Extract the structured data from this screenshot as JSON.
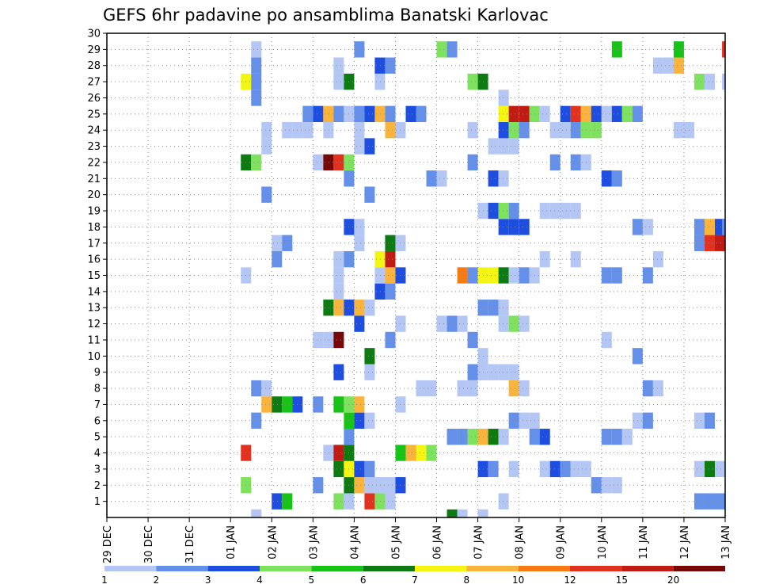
{
  "chart_data": {
    "type": "heatmap",
    "title": "GEFS 6hr padavine po ansamblima Banatski Karlovac",
    "xlabel": "",
    "ylabel": "",
    "x_tick_labels": [
      "29 DEC",
      "30 DEC",
      "31 DEC",
      "01 JAN",
      "02 JAN",
      "03 JAN",
      "04 JAN",
      "05 JAN",
      "06 JAN",
      "07 JAN",
      "08 JAN",
      "09 JAN",
      "10 JAN",
      "11 JAN",
      "12 JAN",
      "13 JAN"
    ],
    "x_unit": "6-hour step (0 = 29 DEC 00Z)",
    "xlim": [
      0,
      60
    ],
    "y_tick_labels": [
      "1",
      "2",
      "3",
      "4",
      "5",
      "6",
      "7",
      "8",
      "9",
      "10",
      "11",
      "12",
      "13",
      "14",
      "15",
      "16",
      "17",
      "18",
      "19",
      "20",
      "21",
      "22",
      "23",
      "24",
      "25",
      "26",
      "27",
      "28",
      "29",
      "30"
    ],
    "ylim": [
      0,
      30
    ],
    "grid": true,
    "colorbar": {
      "labels": [
        "1",
        "2",
        "3",
        "4",
        "5",
        "6",
        "7",
        "8",
        "10",
        "12",
        "15",
        "20"
      ],
      "colors": [
        "#b3c6f4",
        "#6490ea",
        "#1d4ee0",
        "#7fe25f",
        "#18c318",
        "#0d7a12",
        "#f5f514",
        "#f8b43c",
        "#f57c14",
        "#e0321e",
        "#c01c14",
        "#760808"
      ]
    },
    "cells": [
      {
        "x": 14.5,
        "y": 0,
        "v": 1
      },
      {
        "x": 33.5,
        "y": 0,
        "v": 6
      },
      {
        "x": 34.5,
        "y": 0,
        "v": 1
      },
      {
        "x": 36.5,
        "y": 0,
        "v": 1
      },
      {
        "x": 16.5,
        "y": 1,
        "v": 3
      },
      {
        "x": 17.5,
        "y": 1,
        "v": 5
      },
      {
        "x": 22.5,
        "y": 1,
        "v": 4
      },
      {
        "x": 23.5,
        "y": 1,
        "v": 1
      },
      {
        "x": 25.5,
        "y": 1,
        "v": 12
      },
      {
        "x": 26.5,
        "y": 1,
        "v": 4
      },
      {
        "x": 27.5,
        "y": 1,
        "v": 1
      },
      {
        "x": 38.5,
        "y": 1,
        "v": 1
      },
      {
        "x": 57.5,
        "y": 1,
        "v": 2
      },
      {
        "x": 58.5,
        "y": 1,
        "v": 2
      },
      {
        "x": 59.5,
        "y": 1,
        "v": 2
      },
      {
        "x": 13.5,
        "y": 2,
        "v": 4
      },
      {
        "x": 20.5,
        "y": 2,
        "v": 2
      },
      {
        "x": 23.5,
        "y": 2,
        "v": 6
      },
      {
        "x": 24.5,
        "y": 2,
        "v": 8
      },
      {
        "x": 25.5,
        "y": 2,
        "v": 1
      },
      {
        "x": 26.5,
        "y": 2,
        "v": 1
      },
      {
        "x": 27.5,
        "y": 2,
        "v": 1
      },
      {
        "x": 28.5,
        "y": 2,
        "v": 3
      },
      {
        "x": 47.5,
        "y": 2,
        "v": 2
      },
      {
        "x": 48.5,
        "y": 2,
        "v": 1
      },
      {
        "x": 49.5,
        "y": 2,
        "v": 1
      },
      {
        "x": 22.5,
        "y": 3,
        "v": 6
      },
      {
        "x": 23.5,
        "y": 3,
        "v": 7
      },
      {
        "x": 24.5,
        "y": 3,
        "v": 3
      },
      {
        "x": 25.5,
        "y": 3,
        "v": 2
      },
      {
        "x": 36.5,
        "y": 3,
        "v": 3
      },
      {
        "x": 37.5,
        "y": 3,
        "v": 2
      },
      {
        "x": 39.5,
        "y": 3,
        "v": 1
      },
      {
        "x": 42.5,
        "y": 3,
        "v": 1
      },
      {
        "x": 43.5,
        "y": 3,
        "v": 3
      },
      {
        "x": 44.5,
        "y": 3,
        "v": 2
      },
      {
        "x": 45.5,
        "y": 3,
        "v": 1
      },
      {
        "x": 46.5,
        "y": 3,
        "v": 1
      },
      {
        "x": 57.5,
        "y": 3,
        "v": 1
      },
      {
        "x": 58.5,
        "y": 3,
        "v": 6
      },
      {
        "x": 59.5,
        "y": 3,
        "v": 1
      },
      {
        "x": 13.5,
        "y": 4,
        "v": 12
      },
      {
        "x": 21.5,
        "y": 4,
        "v": 1
      },
      {
        "x": 22.5,
        "y": 4,
        "v": 15
      },
      {
        "x": 23.5,
        "y": 4,
        "v": 6
      },
      {
        "x": 28.5,
        "y": 4,
        "v": 5
      },
      {
        "x": 29.5,
        "y": 4,
        "v": 8
      },
      {
        "x": 30.5,
        "y": 4,
        "v": 7
      },
      {
        "x": 31.5,
        "y": 4,
        "v": 4
      },
      {
        "x": 23.5,
        "y": 5,
        "v": 2
      },
      {
        "x": 33.5,
        "y": 5,
        "v": 2
      },
      {
        "x": 34.5,
        "y": 5,
        "v": 2
      },
      {
        "x": 35.5,
        "y": 5,
        "v": 4
      },
      {
        "x": 36.5,
        "y": 5,
        "v": 8
      },
      {
        "x": 37.5,
        "y": 5,
        "v": 6
      },
      {
        "x": 38.5,
        "y": 5,
        "v": 1
      },
      {
        "x": 41.5,
        "y": 5,
        "v": 2
      },
      {
        "x": 42.5,
        "y": 5,
        "v": 3
      },
      {
        "x": 48.5,
        "y": 5,
        "v": 2
      },
      {
        "x": 49.5,
        "y": 5,
        "v": 2
      },
      {
        "x": 50.5,
        "y": 5,
        "v": 1
      },
      {
        "x": 14.5,
        "y": 6,
        "v": 2
      },
      {
        "x": 23.5,
        "y": 6,
        "v": 5
      },
      {
        "x": 24.5,
        "y": 6,
        "v": 3
      },
      {
        "x": 25.5,
        "y": 6,
        "v": 1
      },
      {
        "x": 39.5,
        "y": 6,
        "v": 2
      },
      {
        "x": 40.5,
        "y": 6,
        "v": 1
      },
      {
        "x": 41.5,
        "y": 6,
        "v": 1
      },
      {
        "x": 51.5,
        "y": 6,
        "v": 1
      },
      {
        "x": 52.5,
        "y": 6,
        "v": 2
      },
      {
        "x": 57.5,
        "y": 6,
        "v": 1
      },
      {
        "x": 58.5,
        "y": 6,
        "v": 2
      },
      {
        "x": 15.5,
        "y": 7,
        "v": 8
      },
      {
        "x": 16.5,
        "y": 7,
        "v": 6
      },
      {
        "x": 17.5,
        "y": 7,
        "v": 5
      },
      {
        "x": 18.5,
        "y": 7,
        "v": 3
      },
      {
        "x": 20.5,
        "y": 7,
        "v": 2
      },
      {
        "x": 22.5,
        "y": 7,
        "v": 5
      },
      {
        "x": 23.5,
        "y": 7,
        "v": 4
      },
      {
        "x": 24.5,
        "y": 7,
        "v": 8
      },
      {
        "x": 28.5,
        "y": 7,
        "v": 1
      },
      {
        "x": 14.5,
        "y": 8,
        "v": 2
      },
      {
        "x": 15.5,
        "y": 8,
        "v": 1
      },
      {
        "x": 30.5,
        "y": 8,
        "v": 1
      },
      {
        "x": 31.5,
        "y": 8,
        "v": 1
      },
      {
        "x": 34.5,
        "y": 8,
        "v": 1
      },
      {
        "x": 35.5,
        "y": 8,
        "v": 1
      },
      {
        "x": 39.5,
        "y": 8,
        "v": 8
      },
      {
        "x": 40.5,
        "y": 8,
        "v": 1
      },
      {
        "x": 52.5,
        "y": 8,
        "v": 2
      },
      {
        "x": 53.5,
        "y": 8,
        "v": 1
      },
      {
        "x": 22.5,
        "y": 9,
        "v": 3
      },
      {
        "x": 25.5,
        "y": 9,
        "v": 1
      },
      {
        "x": 35.5,
        "y": 9,
        "v": 2
      },
      {
        "x": 36.5,
        "y": 9,
        "v": 1
      },
      {
        "x": 37.5,
        "y": 9,
        "v": 1
      },
      {
        "x": 38.5,
        "y": 9,
        "v": 1
      },
      {
        "x": 39.5,
        "y": 9,
        "v": 1
      },
      {
        "x": 25.5,
        "y": 10,
        "v": 6
      },
      {
        "x": 36.5,
        "y": 10,
        "v": 1
      },
      {
        "x": 51.5,
        "y": 10,
        "v": 2
      },
      {
        "x": 20.5,
        "y": 11,
        "v": 1
      },
      {
        "x": 21.5,
        "y": 11,
        "v": 1
      },
      {
        "x": 22.5,
        "y": 11,
        "v": 20
      },
      {
        "x": 27.5,
        "y": 11,
        "v": 2
      },
      {
        "x": 35.5,
        "y": 11,
        "v": 2
      },
      {
        "x": 48.5,
        "y": 11,
        "v": 1
      },
      {
        "x": 24.5,
        "y": 12,
        "v": 3
      },
      {
        "x": 28.5,
        "y": 12,
        "v": 1
      },
      {
        "x": 32.5,
        "y": 12,
        "v": 1
      },
      {
        "x": 33.5,
        "y": 12,
        "v": 2
      },
      {
        "x": 34.5,
        "y": 12,
        "v": 1
      },
      {
        "x": 38.5,
        "y": 12,
        "v": 1
      },
      {
        "x": 39.5,
        "y": 12,
        "v": 4
      },
      {
        "x": 40.5,
        "y": 12,
        "v": 1
      },
      {
        "x": 21.5,
        "y": 13,
        "v": 6
      },
      {
        "x": 22.5,
        "y": 13,
        "v": 8
      },
      {
        "x": 23.5,
        "y": 13,
        "v": 3
      },
      {
        "x": 24.5,
        "y": 13,
        "v": 8
      },
      {
        "x": 25.5,
        "y": 13,
        "v": 1
      },
      {
        "x": 36.5,
        "y": 13,
        "v": 2
      },
      {
        "x": 37.5,
        "y": 13,
        "v": 2
      },
      {
        "x": 38.5,
        "y": 13,
        "v": 1
      },
      {
        "x": 22.5,
        "y": 14,
        "v": 1
      },
      {
        "x": 26.5,
        "y": 14,
        "v": 3
      },
      {
        "x": 27.5,
        "y": 14,
        "v": 2
      },
      {
        "x": 13.5,
        "y": 15,
        "v": 1
      },
      {
        "x": 22.5,
        "y": 15,
        "v": 1
      },
      {
        "x": 26.5,
        "y": 15,
        "v": 1
      },
      {
        "x": 27.5,
        "y": 15,
        "v": 8
      },
      {
        "x": 28.5,
        "y": 15,
        "v": 3
      },
      {
        "x": 34.5,
        "y": 15,
        "v": 10
      },
      {
        "x": 35.5,
        "y": 15,
        "v": 2
      },
      {
        "x": 36.5,
        "y": 15,
        "v": 7
      },
      {
        "x": 37.5,
        "y": 15,
        "v": 7
      },
      {
        "x": 38.5,
        "y": 15,
        "v": 6
      },
      {
        "x": 39.5,
        "y": 15,
        "v": 1
      },
      {
        "x": 40.5,
        "y": 15,
        "v": 2
      },
      {
        "x": 41.5,
        "y": 15,
        "v": 1
      },
      {
        "x": 48.5,
        "y": 15,
        "v": 2
      },
      {
        "x": 49.5,
        "y": 15,
        "v": 2
      },
      {
        "x": 52.5,
        "y": 15,
        "v": 2
      },
      {
        "x": 16.5,
        "y": 16,
        "v": 2
      },
      {
        "x": 22.5,
        "y": 16,
        "v": 1
      },
      {
        "x": 23.5,
        "y": 16,
        "v": 2
      },
      {
        "x": 26.5,
        "y": 16,
        "v": 7
      },
      {
        "x": 27.5,
        "y": 16,
        "v": 15
      },
      {
        "x": 42.5,
        "y": 16,
        "v": 1
      },
      {
        "x": 45.5,
        "y": 16,
        "v": 1
      },
      {
        "x": 53.5,
        "y": 16,
        "v": 1
      },
      {
        "x": 16.5,
        "y": 17,
        "v": 1
      },
      {
        "x": 17.5,
        "y": 17,
        "v": 2
      },
      {
        "x": 24.5,
        "y": 17,
        "v": 1
      },
      {
        "x": 27.5,
        "y": 17,
        "v": 6
      },
      {
        "x": 28.5,
        "y": 17,
        "v": 1
      },
      {
        "x": 57.5,
        "y": 17,
        "v": 2
      },
      {
        "x": 58.5,
        "y": 17,
        "v": 12
      },
      {
        "x": 59.5,
        "y": 17,
        "v": 15
      },
      {
        "x": 23.5,
        "y": 18,
        "v": 3
      },
      {
        "x": 24.5,
        "y": 18,
        "v": 1
      },
      {
        "x": 38.5,
        "y": 18,
        "v": 3
      },
      {
        "x": 39.5,
        "y": 18,
        "v": 3
      },
      {
        "x": 40.5,
        "y": 18,
        "v": 3
      },
      {
        "x": 51.5,
        "y": 18,
        "v": 2
      },
      {
        "x": 52.5,
        "y": 18,
        "v": 1
      },
      {
        "x": 57.5,
        "y": 18,
        "v": 2
      },
      {
        "x": 58.5,
        "y": 18,
        "v": 8
      },
      {
        "x": 59.5,
        "y": 18,
        "v": 3
      },
      {
        "x": 60.2,
        "y": 18,
        "v": 2
      },
      {
        "x": 36.5,
        "y": 19,
        "v": 1
      },
      {
        "x": 37.5,
        "y": 19,
        "v": 3
      },
      {
        "x": 38.5,
        "y": 19,
        "v": 4
      },
      {
        "x": 39.5,
        "y": 19,
        "v": 2
      },
      {
        "x": 42.5,
        "y": 19,
        "v": 1
      },
      {
        "x": 43.5,
        "y": 19,
        "v": 1
      },
      {
        "x": 44.5,
        "y": 19,
        "v": 1
      },
      {
        "x": 45.5,
        "y": 19,
        "v": 1
      },
      {
        "x": 15.5,
        "y": 20,
        "v": 2
      },
      {
        "x": 25.5,
        "y": 20,
        "v": 2
      },
      {
        "x": 23.5,
        "y": 21,
        "v": 2
      },
      {
        "x": 31.5,
        "y": 21,
        "v": 2
      },
      {
        "x": 32.5,
        "y": 21,
        "v": 1
      },
      {
        "x": 37.5,
        "y": 21,
        "v": 3
      },
      {
        "x": 38.5,
        "y": 21,
        "v": 1
      },
      {
        "x": 48.5,
        "y": 21,
        "v": 3
      },
      {
        "x": 49.5,
        "y": 21,
        "v": 2
      },
      {
        "x": 13.5,
        "y": 22,
        "v": 6
      },
      {
        "x": 14.5,
        "y": 22,
        "v": 4
      },
      {
        "x": 20.5,
        "y": 22,
        "v": 1
      },
      {
        "x": 21.5,
        "y": 22,
        "v": 20
      },
      {
        "x": 22.5,
        "y": 22,
        "v": 12
      },
      {
        "x": 23.5,
        "y": 22,
        "v": 4
      },
      {
        "x": 35.5,
        "y": 22,
        "v": 2
      },
      {
        "x": 43.5,
        "y": 22,
        "v": 2
      },
      {
        "x": 45.5,
        "y": 22,
        "v": 2
      },
      {
        "x": 46.5,
        "y": 22,
        "v": 1
      },
      {
        "x": 15.5,
        "y": 23,
        "v": 1
      },
      {
        "x": 24.5,
        "y": 23,
        "v": 1
      },
      {
        "x": 25.5,
        "y": 23,
        "v": 3
      },
      {
        "x": 37.5,
        "y": 23,
        "v": 1
      },
      {
        "x": 38.5,
        "y": 23,
        "v": 1
      },
      {
        "x": 39.5,
        "y": 23,
        "v": 1
      },
      {
        "x": 15.5,
        "y": 24,
        "v": 1
      },
      {
        "x": 17.5,
        "y": 24,
        "v": 1
      },
      {
        "x": 18.5,
        "y": 24,
        "v": 1
      },
      {
        "x": 19.5,
        "y": 24,
        "v": 1
      },
      {
        "x": 21.5,
        "y": 24,
        "v": 1
      },
      {
        "x": 24.5,
        "y": 24,
        "v": 1
      },
      {
        "x": 27.5,
        "y": 24,
        "v": 8
      },
      {
        "x": 28.5,
        "y": 24,
        "v": 1
      },
      {
        "x": 35.5,
        "y": 24,
        "v": 1
      },
      {
        "x": 38.5,
        "y": 24,
        "v": 3
      },
      {
        "x": 39.5,
        "y": 24,
        "v": 4
      },
      {
        "x": 40.5,
        "y": 24,
        "v": 2
      },
      {
        "x": 43.5,
        "y": 24,
        "v": 1
      },
      {
        "x": 44.5,
        "y": 24,
        "v": 1
      },
      {
        "x": 45.5,
        "y": 24,
        "v": 2
      },
      {
        "x": 46.5,
        "y": 24,
        "v": 4
      },
      {
        "x": 47.5,
        "y": 24,
        "v": 4
      },
      {
        "x": 55.5,
        "y": 24,
        "v": 1
      },
      {
        "x": 56.5,
        "y": 24,
        "v": 1
      },
      {
        "x": 19.5,
        "y": 25,
        "v": 2
      },
      {
        "x": 20.5,
        "y": 25,
        "v": 3
      },
      {
        "x": 21.5,
        "y": 25,
        "v": 8
      },
      {
        "x": 22.5,
        "y": 25,
        "v": 2
      },
      {
        "x": 23.5,
        "y": 25,
        "v": 1
      },
      {
        "x": 24.5,
        "y": 25,
        "v": 2
      },
      {
        "x": 25.5,
        "y": 25,
        "v": 3
      },
      {
        "x": 26.5,
        "y": 25,
        "v": 8
      },
      {
        "x": 27.5,
        "y": 25,
        "v": 2
      },
      {
        "x": 29.5,
        "y": 25,
        "v": 3
      },
      {
        "x": 30.5,
        "y": 25,
        "v": 2
      },
      {
        "x": 38.5,
        "y": 25,
        "v": 7
      },
      {
        "x": 39.5,
        "y": 25,
        "v": 15
      },
      {
        "x": 40.5,
        "y": 25,
        "v": 15
      },
      {
        "x": 41.5,
        "y": 25,
        "v": 4
      },
      {
        "x": 42.5,
        "y": 25,
        "v": 1
      },
      {
        "x": 44.5,
        "y": 25,
        "v": 3
      },
      {
        "x": 45.5,
        "y": 25,
        "v": 12
      },
      {
        "x": 46.5,
        "y": 25,
        "v": 8
      },
      {
        "x": 47.5,
        "y": 25,
        "v": 3
      },
      {
        "x": 48.5,
        "y": 25,
        "v": 1
      },
      {
        "x": 49.5,
        "y": 25,
        "v": 3
      },
      {
        "x": 50.5,
        "y": 25,
        "v": 4
      },
      {
        "x": 51.5,
        "y": 25,
        "v": 2
      },
      {
        "x": 14.5,
        "y": 26,
        "v": 2
      },
      {
        "x": 38.5,
        "y": 26,
        "v": 1
      },
      {
        "x": 13.5,
        "y": 27,
        "v": 7
      },
      {
        "x": 14.5,
        "y": 27,
        "v": 2
      },
      {
        "x": 22.5,
        "y": 27,
        "v": 1
      },
      {
        "x": 23.5,
        "y": 27,
        "v": 6
      },
      {
        "x": 26.5,
        "y": 27,
        "v": 1
      },
      {
        "x": 35.5,
        "y": 27,
        "v": 4
      },
      {
        "x": 36.5,
        "y": 27,
        "v": 6
      },
      {
        "x": 57.5,
        "y": 27,
        "v": 4
      },
      {
        "x": 58.5,
        "y": 27,
        "v": 1
      },
      {
        "x": 60.2,
        "y": 27,
        "v": 1
      },
      {
        "x": 14.5,
        "y": 28,
        "v": 2
      },
      {
        "x": 22.5,
        "y": 28,
        "v": 1
      },
      {
        "x": 26.5,
        "y": 28,
        "v": 3
      },
      {
        "x": 27.5,
        "y": 28,
        "v": 2
      },
      {
        "x": 53.5,
        "y": 28,
        "v": 1
      },
      {
        "x": 54.5,
        "y": 28,
        "v": 1
      },
      {
        "x": 55.5,
        "y": 28,
        "v": 8
      },
      {
        "x": 14.5,
        "y": 29,
        "v": 1
      },
      {
        "x": 24.5,
        "y": 29,
        "v": 2
      },
      {
        "x": 32.5,
        "y": 29,
        "v": 4
      },
      {
        "x": 33.5,
        "y": 29,
        "v": 2
      },
      {
        "x": 49.5,
        "y": 29,
        "v": 5
      },
      {
        "x": 55.5,
        "y": 29,
        "v": 5
      },
      {
        "x": 60.2,
        "y": 29,
        "v": 12
      }
    ]
  }
}
